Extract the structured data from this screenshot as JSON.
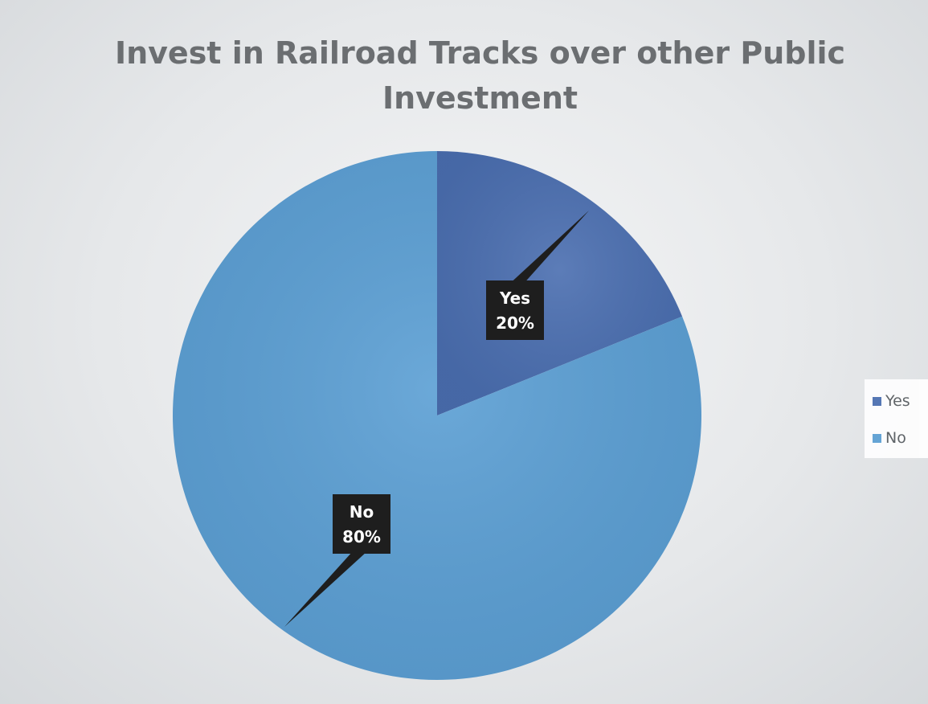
{
  "chart_data": {
    "type": "pie",
    "title": "Invest in Railroad Tracks over other Public Investment",
    "title_lines": [
      "Invest in Railroad Tracks over other Public",
      "Investment"
    ],
    "categories": [
      "Yes",
      "No"
    ],
    "values": [
      20,
      80
    ],
    "unit": "%",
    "data_labels": [
      {
        "category": "Yes",
        "percent": "20%"
      },
      {
        "category": "No",
        "percent": "80%"
      }
    ],
    "colors": {
      "Yes": "#4a6eb0",
      "No": "#5b9fd4"
    },
    "legend_position": "right",
    "legend": [
      "Yes",
      "No"
    ]
  }
}
